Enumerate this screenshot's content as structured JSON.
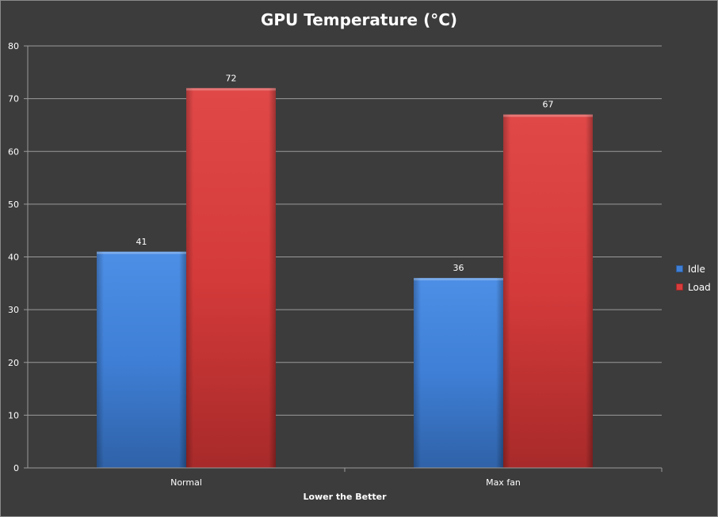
{
  "chart_data": {
    "type": "bar",
    "title": "GPU Temperature (°C)",
    "xlabel": "Lower the Better",
    "ylabel": "",
    "categories": [
      "Normal",
      "Max fan"
    ],
    "series": [
      {
        "name": "Idle",
        "values": [
          41,
          36
        ],
        "color": "#3f7fd6"
      },
      {
        "name": "Load",
        "values": [
          72,
          67
        ],
        "color": "#d93c3c"
      }
    ],
    "ylim": [
      0,
      80
    ],
    "yticks": [
      0,
      10,
      20,
      30,
      40,
      50,
      60,
      70,
      80
    ],
    "grid": true,
    "legend_position": "right",
    "data_labels": true
  },
  "colors": {
    "background": "#3c3c3c",
    "gridline": "#9a9a9a",
    "text": "#ffffff"
  }
}
